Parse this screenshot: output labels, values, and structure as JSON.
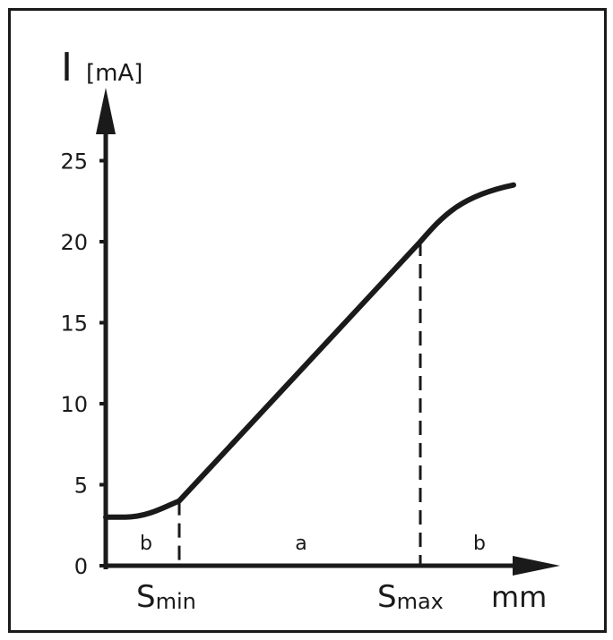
{
  "chart_data": {
    "type": "line",
    "title": "",
    "ylabel_symbol": "I",
    "ylabel_unit": "[mA]",
    "xlabel": "mm",
    "yticks": [
      0,
      5,
      10,
      15,
      20,
      25
    ],
    "ylim": [
      0,
      25
    ],
    "x_markers": [
      {
        "name": "S_min",
        "main": "S",
        "sub": "min",
        "y": 4
      },
      {
        "name": "S_max",
        "main": "S",
        "sub": "max",
        "y": 20
      }
    ],
    "regions": [
      "b",
      "a",
      "b"
    ],
    "series": [
      {
        "values": [
          {
            "x": "start",
            "y": 3
          },
          {
            "x": "S_min",
            "y": 4
          },
          {
            "x": "S_max",
            "y": 20
          },
          {
            "x": "end",
            "y": 23.5
          }
        ]
      }
    ]
  },
  "colors": {
    "line": "#1a1a1a",
    "background": "#ffffff"
  }
}
